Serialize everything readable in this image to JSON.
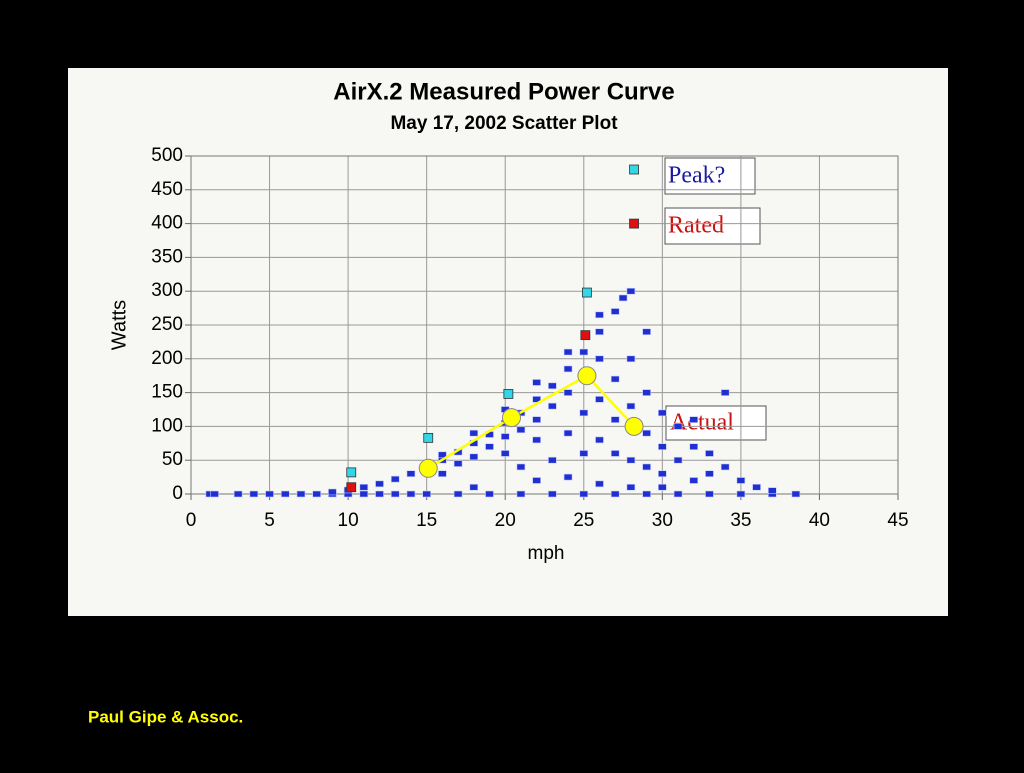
{
  "chart_data": {
    "type": "scatter",
    "title": "AirX.2 Measured Power Curve",
    "subtitle": "May 17, 2002 Scatter Plot",
    "x_label": "mph",
    "y_label": "Watts",
    "xlim": [
      0,
      45
    ],
    "xticks": [
      0,
      5,
      10,
      15,
      20,
      25,
      30,
      35,
      40,
      45
    ],
    "ylim": [
      0,
      500
    ],
    "yticks": [
      0,
      50,
      100,
      150,
      200,
      250,
      300,
      350,
      400,
      450,
      500
    ],
    "grid": true,
    "series": [
      {
        "color": "#1f2fd0",
        "marker": "square",
        "x": [
          1.2,
          1.5,
          3,
          4,
          5,
          6,
          7,
          8,
          9,
          10,
          11,
          12,
          13,
          14,
          15,
          17,
          19,
          21,
          23,
          25,
          27,
          29,
          31,
          33,
          35,
          37,
          38.5,
          9,
          10,
          11,
          12,
          13,
          14,
          15,
          16,
          17,
          18,
          19,
          20,
          21,
          22,
          23,
          24,
          25,
          26,
          27,
          28,
          16,
          18,
          20,
          22,
          24,
          26,
          27.5,
          16,
          17,
          18,
          19,
          20,
          20,
          21,
          21,
          22,
          22,
          23,
          23,
          24,
          24,
          25,
          25,
          25,
          26,
          26,
          26,
          27,
          27,
          27,
          28,
          28,
          28,
          29,
          29,
          29,
          29,
          30,
          30,
          30,
          31,
          31,
          32,
          32,
          32,
          33,
          33,
          34,
          34,
          35,
          36,
          37,
          22,
          24,
          26,
          28,
          30,
          18
        ],
        "values": [
          0,
          0,
          0,
          0,
          0,
          0,
          0,
          0,
          0,
          0,
          0,
          0,
          0,
          0,
          0,
          0,
          0,
          0,
          0,
          0,
          0,
          0,
          0,
          0,
          0,
          0,
          0,
          3,
          6,
          10,
          15,
          22,
          30,
          40,
          50,
          62,
          75,
          88,
          105,
          120,
          140,
          160,
          185,
          210,
          240,
          270,
          300,
          58,
          90,
          125,
          165,
          210,
          265,
          290,
          30,
          45,
          55,
          70,
          60,
          85,
          40,
          95,
          80,
          110,
          50,
          130,
          90,
          150,
          60,
          120,
          170,
          80,
          140,
          200,
          60,
          110,
          170,
          50,
          130,
          200,
          40,
          90,
          150,
          240,
          30,
          70,
          120,
          50,
          100,
          20,
          70,
          110,
          30,
          60,
          40,
          150,
          20,
          10,
          5,
          20,
          25,
          15,
          10,
          10,
          10
        ]
      },
      {
        "name": "Peak?",
        "color": "#33d6e6",
        "marker": "square",
        "x": [
          10.2,
          15.1,
          20.2,
          25.2,
          28.2
        ],
        "values": [
          32,
          83,
          148,
          298,
          480
        ]
      },
      {
        "name": "Rated",
        "color": "#e01010",
        "marker": "square",
        "x": [
          10.2,
          25.1,
          28.2
        ],
        "values": [
          10,
          235,
          400
        ]
      },
      {
        "name": "Actual",
        "color": "#ffff00",
        "marker": "line",
        "x": [
          15.1,
          20.4,
          25.2,
          28.2
        ],
        "values": [
          38,
          113,
          175,
          100
        ]
      }
    ]
  },
  "footer": "Paul Gipe & Assoc."
}
